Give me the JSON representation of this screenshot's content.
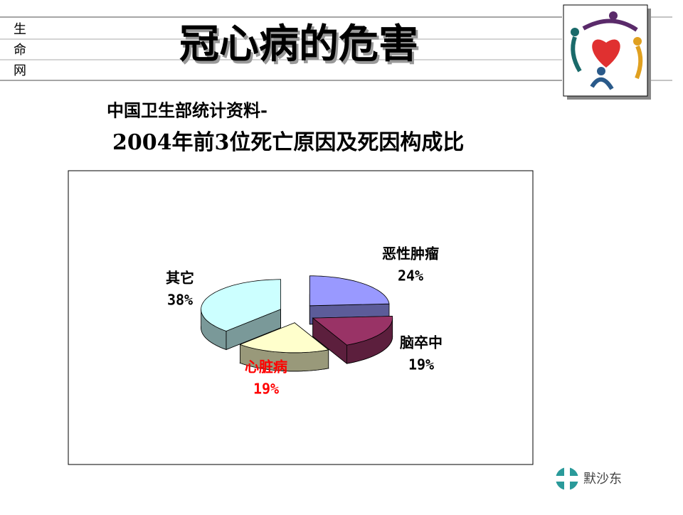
{
  "header": {
    "side_chars": [
      "生",
      "命",
      "网"
    ],
    "title": "冠心病的危害"
  },
  "subtitle_lines": [
    "中国卫生部统计资料-",
    "2004年前3位死亡原因及死因构成比"
  ],
  "footer_logo": "默沙东",
  "chart_data": {
    "type": "pie3d",
    "categories": [
      "恶性肿瘤",
      "脑卒中",
      "心脏病",
      "其它"
    ],
    "values": [
      24,
      19,
      19,
      38
    ],
    "value_labels": [
      "24%",
      "19%",
      "19%",
      "38%"
    ],
    "colors": [
      "#9999ff",
      "#993366",
      "#ffffcc",
      "#ccffff"
    ],
    "label_colors": [
      "#000000",
      "#000000",
      "#ff0000",
      "#000000"
    ]
  }
}
